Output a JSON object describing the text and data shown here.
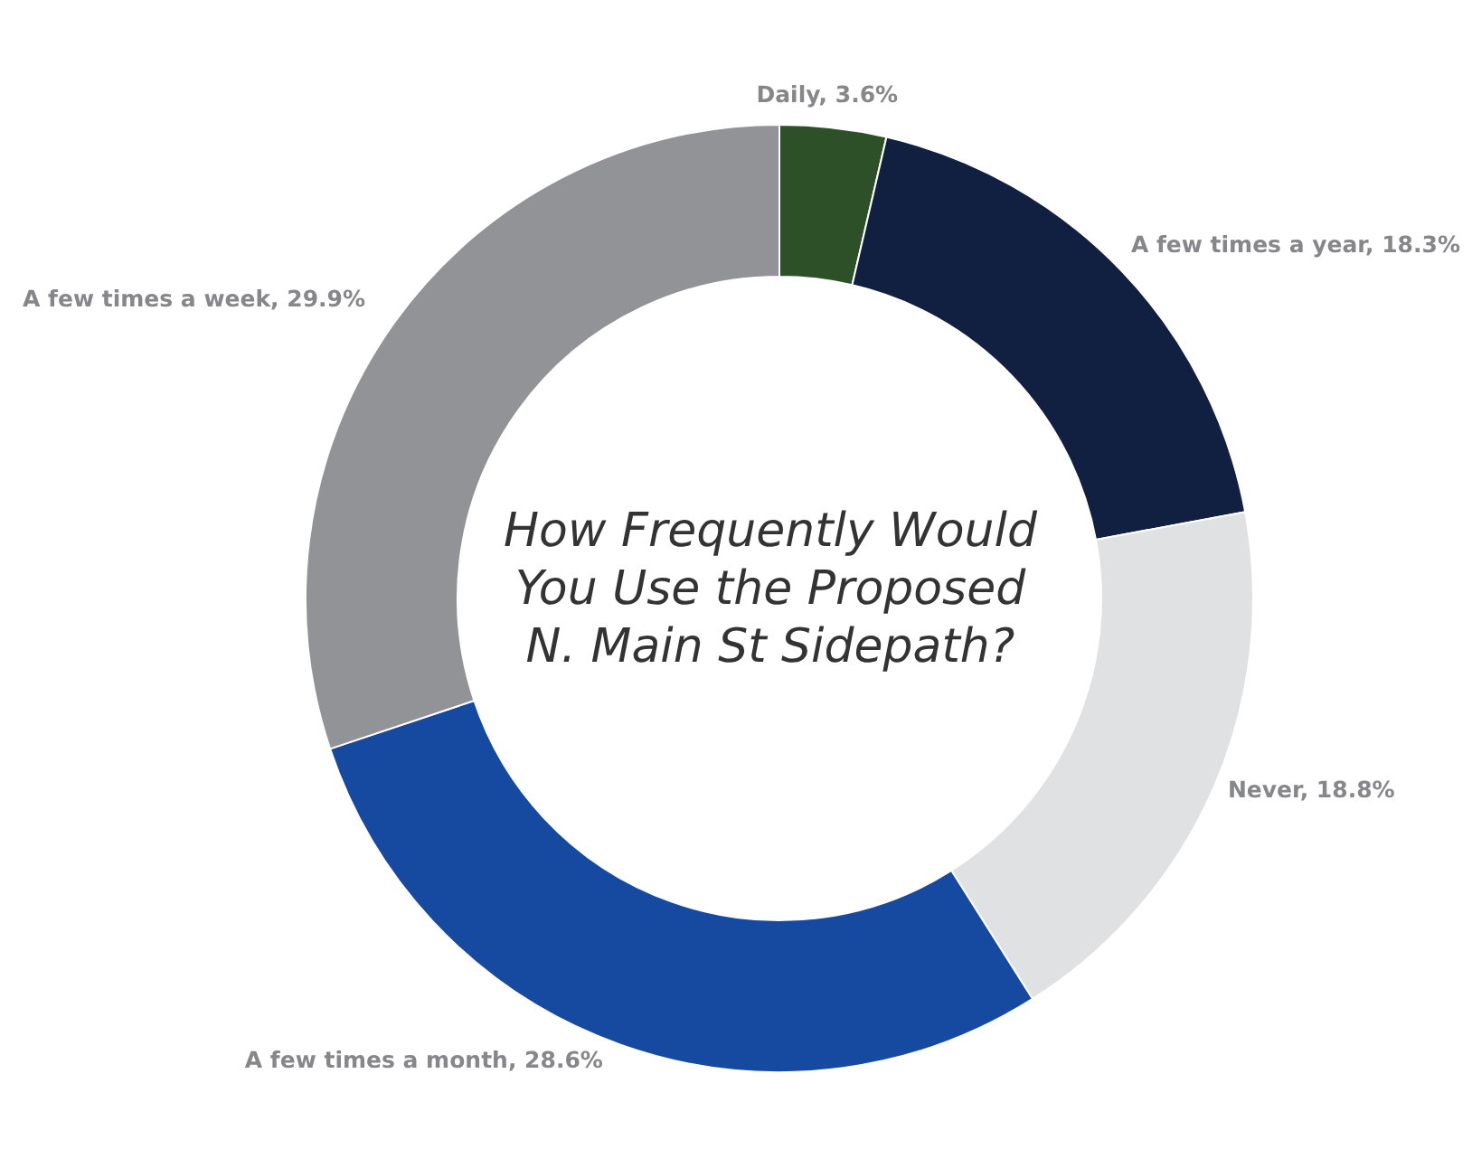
{
  "chart_data": {
    "type": "donut",
    "title": "How Frequently Would You Use the Proposed N. Main St Sidepath?",
    "categories": [
      "Daily",
      "A few times a year",
      "Never",
      "A few times a month",
      "A few times a week"
    ],
    "values": [
      3.6,
      18.3,
      18.8,
      28.6,
      29.9
    ],
    "value_labels": [
      "3.6%",
      "18.3%",
      "18.8%",
      "28.6%",
      "29.9%"
    ],
    "colors": [
      "#2d5028",
      "#111f40",
      "#e0e1e3",
      "#1649a0",
      "#929396"
    ]
  }
}
